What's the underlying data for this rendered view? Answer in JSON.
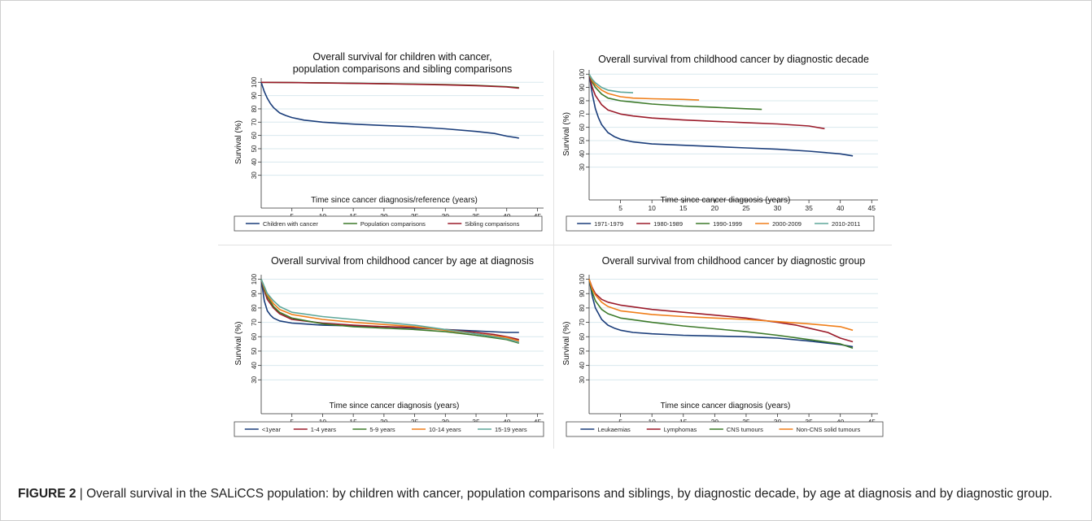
{
  "figure": {
    "label": "FIGURE 2",
    "separator": " | ",
    "text": "Overall survival in the SALiCCS population: by children with cancer, population comparisons and siblings, by diagnostic decade, by age at diagnosis and by diagnostic group."
  },
  "colors": {
    "navy": "#1a3d7a",
    "maroon": "#9b1b2a",
    "green": "#3d7a2a",
    "orange": "#f07f1a",
    "teal": "#5ea79a"
  },
  "chart_data": [
    {
      "type": "line",
      "title": "Overall survival for children with cancer,\npopulation comparisons and sibling comparisons",
      "xlabel": "Time since cancer diagnosis/reference (years)",
      "ylabel": "Survival (%)",
      "xticks": [
        5,
        10,
        15,
        20,
        25,
        30,
        35,
        40,
        45
      ],
      "yticks": [
        30,
        40,
        50,
        60,
        70,
        80,
        90,
        100
      ],
      "xlim": [
        0,
        46
      ],
      "ylim": [
        20,
        102
      ],
      "grid": true,
      "legend_position": "bottom",
      "series": [
        {
          "name": "Children with cancer",
          "color": "#1a3d7a",
          "x": [
            0,
            0.5,
            1,
            1.5,
            2,
            3,
            4,
            5,
            7,
            10,
            15,
            20,
            25,
            30,
            35,
            38,
            40,
            42
          ],
          "y": [
            100,
            93,
            88,
            84,
            81,
            77,
            75,
            73.5,
            71.5,
            70,
            68.5,
            67.5,
            66.5,
            65,
            63,
            61.5,
            59.5,
            58
          ]
        },
        {
          "name": "Population comparisons",
          "color": "#3d7a2a",
          "x": [
            0,
            5,
            10,
            20,
            30,
            35,
            40,
            42
          ],
          "y": [
            100,
            99.8,
            99.6,
            99,
            98.3,
            97.7,
            96.7,
            96
          ]
        },
        {
          "name": "Sibling comparisons",
          "color": "#9b1b2a",
          "x": [
            0,
            5,
            10,
            20,
            30,
            35,
            40,
            42
          ],
          "y": [
            100,
            99.8,
            99.5,
            98.9,
            98.1,
            97.5,
            96.5,
            95.6
          ]
        }
      ]
    },
    {
      "type": "line",
      "title": "Overall survival from childhood cancer by diagnostic decade",
      "xlabel": "Time since cancer diagnosis (years)",
      "ylabel": "Survival (%)",
      "xticks": [
        5,
        10,
        15,
        20,
        25,
        30,
        35,
        40,
        45
      ],
      "yticks": [
        30,
        40,
        50,
        60,
        70,
        80,
        90,
        100
      ],
      "xlim": [
        0,
        46
      ],
      "ylim": [
        20,
        102
      ],
      "grid": true,
      "legend_position": "bottom",
      "series": [
        {
          "name": "1971-1979",
          "color": "#1a3d7a",
          "x": [
            0,
            0.5,
            1,
            1.5,
            2,
            3,
            4,
            5,
            7,
            10,
            15,
            20,
            25,
            30,
            35,
            40,
            42
          ],
          "y": [
            100,
            85,
            74,
            67,
            62,
            56,
            53,
            51,
            49,
            47.5,
            46.5,
            45.5,
            44.5,
            43.5,
            42,
            40,
            38.5
          ]
        },
        {
          "name": "1980-1989",
          "color": "#9b1b2a",
          "x": [
            0,
            0.5,
            1,
            2,
            3,
            5,
            7,
            10,
            15,
            20,
            25,
            30,
            35,
            37.5
          ],
          "y": [
            100,
            90,
            84,
            77,
            73,
            70,
            68.5,
            67,
            65.5,
            64.5,
            63.5,
            62.5,
            61,
            59
          ]
        },
        {
          "name": "1990-1999",
          "color": "#3d7a2a",
          "x": [
            0,
            0.5,
            1,
            2,
            3,
            5,
            7,
            10,
            15,
            20,
            25,
            27.5
          ],
          "y": [
            100,
            94,
            90,
            85,
            82,
            80,
            79,
            77.5,
            76,
            75,
            74,
            73.5
          ]
        },
        {
          "name": "2000-2009",
          "color": "#f07f1a",
          "x": [
            0,
            0.5,
            1,
            2,
            3,
            5,
            7,
            10,
            15,
            17.5
          ],
          "y": [
            100,
            95,
            92,
            88,
            85.5,
            83,
            82,
            81.5,
            81,
            80.5
          ]
        },
        {
          "name": "2010-2011",
          "color": "#5ea79a",
          "x": [
            0,
            0.5,
            1,
            2,
            3,
            5,
            7
          ],
          "y": [
            100,
            96,
            93.5,
            90,
            88,
            86.5,
            86
          ]
        }
      ]
    },
    {
      "type": "line",
      "title": "Overall survival from childhood cancer by age at diagnosis",
      "xlabel": "Time since cancer diagnosis (years)",
      "ylabel": "Survival (%)",
      "xticks": [
        5,
        10,
        15,
        20,
        25,
        30,
        35,
        40,
        45
      ],
      "yticks": [
        30,
        40,
        50,
        60,
        70,
        80,
        90,
        100
      ],
      "xlim": [
        0,
        46
      ],
      "ylim": [
        20,
        102
      ],
      "grid": true,
      "legend_position": "bottom",
      "series": [
        {
          "name": "<1year",
          "color": "#1a3d7a",
          "x": [
            0,
            0.5,
            1,
            1.5,
            2,
            3,
            5,
            10,
            15,
            20,
            25,
            30,
            35,
            40,
            42
          ],
          "y": [
            100,
            85,
            78,
            75,
            73,
            71,
            69.5,
            68,
            67.5,
            67,
            66,
            65,
            64,
            63,
            63
          ]
        },
        {
          "name": "1-4 years",
          "color": "#9b1b2a",
          "x": [
            0,
            0.5,
            1,
            2,
            3,
            5,
            10,
            15,
            20,
            25,
            30,
            35,
            38,
            40,
            42
          ],
          "y": [
            100,
            92,
            86,
            80,
            76,
            72,
            69.5,
            68,
            67,
            66.5,
            65,
            63,
            61.5,
            60,
            58
          ]
        },
        {
          "name": "5-9 years",
          "color": "#3d7a2a",
          "x": [
            0,
            0.5,
            1,
            2,
            3,
            5,
            10,
            15,
            20,
            25,
            30,
            35,
            40,
            42
          ],
          "y": [
            100,
            93,
            88,
            81,
            77,
            73,
            69,
            67,
            66,
            65,
            63.5,
            61,
            58,
            55.5
          ]
        },
        {
          "name": "10-14 years",
          "color": "#f07f1a",
          "x": [
            0,
            0.5,
            1,
            2,
            3,
            5,
            10,
            15,
            20,
            25,
            30,
            35,
            40,
            42
          ],
          "y": [
            100,
            94,
            89,
            83,
            79,
            75.5,
            72,
            70,
            68.5,
            67,
            64.5,
            62,
            59.5,
            57
          ]
        },
        {
          "name": "15-19 years",
          "color": "#5ea79a",
          "x": [
            0,
            0.5,
            1,
            2,
            3,
            5,
            10,
            15,
            20,
            25,
            30,
            35,
            40,
            42
          ],
          "y": [
            100,
            95,
            90,
            85,
            81,
            77,
            74,
            72,
            70,
            68,
            65,
            62,
            58.5,
            56
          ]
        }
      ]
    },
    {
      "type": "line",
      "title": "Overall survival from childhood cancer by diagnostic group",
      "xlabel": "Time since cancer diagnosis (years)",
      "ylabel": "Survival (%)",
      "xticks": [
        5,
        10,
        15,
        20,
        25,
        30,
        35,
        40,
        45
      ],
      "yticks": [
        30,
        40,
        50,
        60,
        70,
        80,
        90,
        100
      ],
      "xlim": [
        0,
        46
      ],
      "ylim": [
        20,
        102
      ],
      "grid": true,
      "legend_position": "bottom",
      "series": [
        {
          "name": "Leukaemias",
          "color": "#1a3d7a",
          "x": [
            0,
            0.5,
            1,
            2,
            3,
            4,
            5,
            7,
            10,
            15,
            20,
            25,
            30,
            35,
            40,
            42
          ],
          "y": [
            100,
            88,
            80,
            72,
            68,
            66,
            64.5,
            63,
            62,
            61,
            60.5,
            60,
            59,
            57,
            54.5,
            53
          ]
        },
        {
          "name": "Lymphomas",
          "color": "#9b1b2a",
          "x": [
            0,
            0.5,
            1,
            2,
            3,
            5,
            10,
            15,
            20,
            25,
            30,
            33,
            35,
            38,
            40,
            42
          ],
          "y": [
            100,
            94,
            90,
            86,
            84,
            82,
            79,
            77,
            75,
            73,
            70,
            68,
            66,
            63,
            59,
            56.5
          ]
        },
        {
          "name": "CNS tumours",
          "color": "#3d7a2a",
          "x": [
            0,
            0.5,
            1,
            2,
            3,
            5,
            10,
            15,
            20,
            25,
            30,
            35,
            40,
            42
          ],
          "y": [
            100,
            91,
            85,
            79,
            76,
            73,
            70,
            67.5,
            65.5,
            63.5,
            61,
            58,
            55,
            52
          ]
        },
        {
          "name": "Non-CNS solid tumours",
          "color": "#f07f1a",
          "x": [
            0,
            0.5,
            1,
            2,
            3,
            5,
            10,
            15,
            20,
            25,
            30,
            35,
            40,
            42
          ],
          "y": [
            100,
            93,
            89,
            84,
            81,
            78,
            75.5,
            74,
            73,
            72,
            70.5,
            69,
            67,
            64.5
          ]
        }
      ]
    }
  ]
}
